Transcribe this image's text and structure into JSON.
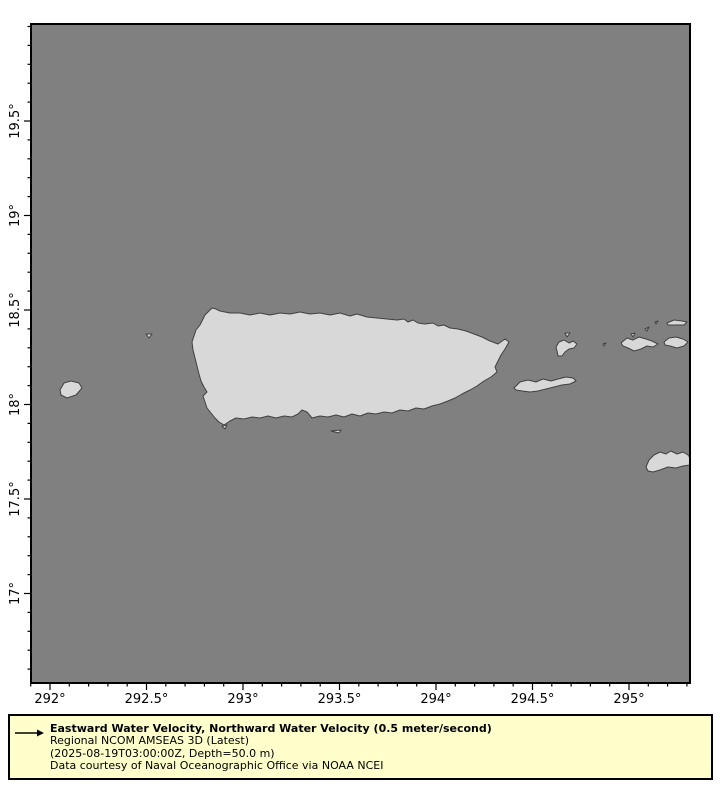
{
  "colors": {
    "ocean": "#808080",
    "land": "#d8d8d8",
    "coastline": "#404040",
    "legend_background": "#ffffcc",
    "axis": "#000000"
  },
  "axes": {
    "x_ticks": [
      "292°",
      "292.5°",
      "293°",
      "293.5°",
      "294°",
      "294.5°",
      "295°"
    ],
    "y_ticks": [
      "19.5°",
      "19°",
      "18.5°",
      "18°",
      "17.5°",
      "17°"
    ]
  },
  "legend": {
    "arrow_icon": "velocity-vector-arrow",
    "title": "Eastward Water Velocity, Northward Water Velocity (0.5 meter/second)",
    "subtitle": "Regional NCOM AMSEAS 3D (Latest)",
    "timestamp_line": "(2025-08-19T03:00:00Z, Depth=50.0 m)",
    "credit_line": "Data courtesy of Naval Oceanographic Office via NOAA NCEI"
  }
}
